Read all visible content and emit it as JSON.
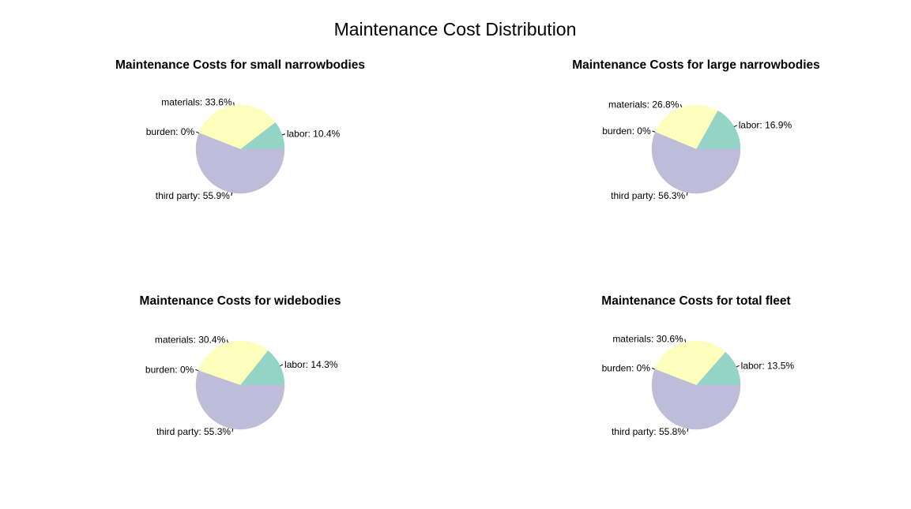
{
  "title": "Maintenance Cost Distribution",
  "colors": {
    "labor": "#93d4c7",
    "materials": "#ffffbd",
    "burden": "#f7b8b8",
    "third party": "#bfbcda"
  },
  "chart_data": [
    {
      "type": "pie",
      "title": "Maintenance Costs for small narrowbodies",
      "slices": [
        {
          "label": "labor",
          "value": 10.4,
          "text": "labor: 10.4%"
        },
        {
          "label": "materials",
          "value": 33.6,
          "text": "materials: 33.6%"
        },
        {
          "label": "burden",
          "value": 0,
          "text": "burden: 0%"
        },
        {
          "label": "third party",
          "value": 55.9,
          "text": "third party: 55.9%"
        }
      ]
    },
    {
      "type": "pie",
      "title": "Maintenance Costs for large narrowbodies",
      "slices": [
        {
          "label": "labor",
          "value": 16.9,
          "text": "labor: 16.9%"
        },
        {
          "label": "materials",
          "value": 26.8,
          "text": "materials: 26.8%"
        },
        {
          "label": "burden",
          "value": 0,
          "text": "burden: 0%"
        },
        {
          "label": "third party",
          "value": 56.3,
          "text": "third party: 56.3%"
        }
      ]
    },
    {
      "type": "pie",
      "title": "Maintenance Costs for widebodies",
      "slices": [
        {
          "label": "labor",
          "value": 14.3,
          "text": "labor: 14.3%"
        },
        {
          "label": "materials",
          "value": 30.4,
          "text": "materials: 30.4%"
        },
        {
          "label": "burden",
          "value": 0,
          "text": "burden: 0%"
        },
        {
          "label": "third party",
          "value": 55.3,
          "text": "third party: 55.3%"
        }
      ]
    },
    {
      "type": "pie",
      "title": "Maintenance Costs for total fleet",
      "slices": [
        {
          "label": "labor",
          "value": 13.5,
          "text": "labor: 13.5%"
        },
        {
          "label": "materials",
          "value": 30.6,
          "text": "materials: 30.6%"
        },
        {
          "label": "burden",
          "value": 0,
          "text": "burden: 0%"
        },
        {
          "label": "third party",
          "value": 55.8,
          "text": "third party: 55.8%"
        }
      ]
    }
  ]
}
